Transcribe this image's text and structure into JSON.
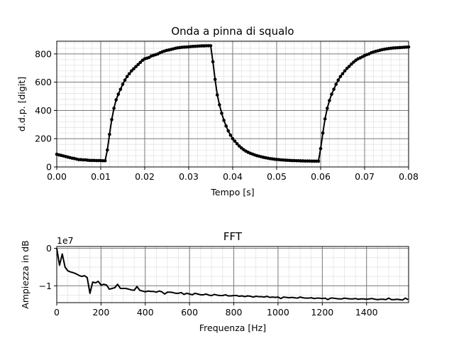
{
  "chart_data": [
    {
      "type": "line",
      "title": "Onda a pinna di squalo",
      "xlabel": "Tempo [s]",
      "ylabel": "d.d.p. [digit]",
      "xlim": [
        0,
        0.08
      ],
      "ylim": [
        0,
        890
      ],
      "xticks": [
        0.0,
        0.01,
        0.02,
        0.03,
        0.04,
        0.05,
        0.06,
        0.07,
        0.08
      ],
      "xtick_labels": [
        "0.00",
        "0.01",
        "0.02",
        "0.03",
        "0.04",
        "0.05",
        "0.06",
        "0.07",
        "0.08"
      ],
      "yticks": [
        0,
        200,
        400,
        600,
        800
      ],
      "ytick_labels": [
        "0",
        "200",
        "400",
        "600",
        "800"
      ],
      "grid": "major and minor",
      "markers": true,
      "line_color": "#000000",
      "series": [
        {
          "x": [
            0.0,
            0.0005,
            0.001,
            0.0015,
            0.002,
            0.0025,
            0.003,
            0.0035,
            0.004,
            0.0045,
            0.005,
            0.0055,
            0.006,
            0.0065,
            0.007,
            0.0075,
            0.008,
            0.0085,
            0.009,
            0.0095,
            0.01,
            0.0105,
            0.011,
            0.0115,
            0.012,
            0.0125,
            0.013,
            0.0135,
            0.014,
            0.0145,
            0.015,
            0.0155,
            0.016,
            0.0165,
            0.017,
            0.0175,
            0.018,
            0.0185,
            0.019,
            0.0195,
            0.02,
            0.0205,
            0.021,
            0.0215,
            0.022,
            0.0225,
            0.023,
            0.0235,
            0.024,
            0.0245,
            0.025,
            0.0255,
            0.026,
            0.0265,
            0.027,
            0.0275,
            0.028,
            0.0285,
            0.029,
            0.0295,
            0.03,
            0.0305,
            0.031,
            0.0315,
            0.032,
            0.0325,
            0.033,
            0.0335,
            0.034,
            0.0345,
            0.035,
            0.0355,
            0.036,
            0.0365,
            0.037,
            0.0375,
            0.038,
            0.0385,
            0.039,
            0.0395,
            0.04,
            0.0405,
            0.041,
            0.0415,
            0.042,
            0.0425,
            0.043,
            0.0435,
            0.044,
            0.0445,
            0.045,
            0.0455,
            0.046,
            0.0465,
            0.047,
            0.0475,
            0.048,
            0.0485,
            0.049,
            0.0495,
            0.05,
            0.0505,
            0.051,
            0.0515,
            0.052,
            0.0525,
            0.053,
            0.0535,
            0.054,
            0.0545,
            0.055,
            0.0555,
            0.056,
            0.0565,
            0.057,
            0.0575,
            0.058,
            0.0585,
            0.059,
            0.0595,
            0.06,
            0.0605,
            0.061,
            0.0615,
            0.062,
            0.0625,
            0.063,
            0.0635,
            0.064,
            0.0645,
            0.065,
            0.0655,
            0.066,
            0.0665,
            0.067,
            0.0675,
            0.068,
            0.0685,
            0.069,
            0.0695,
            0.07,
            0.0705,
            0.071,
            0.0715,
            0.072,
            0.0725,
            0.073,
            0.0735,
            0.074,
            0.0745,
            0.075,
            0.0755,
            0.076,
            0.0765,
            0.077,
            0.0775,
            0.078,
            0.0785,
            0.079,
            0.0795,
            0.08
          ],
          "y": [
            90,
            85,
            82,
            78,
            74,
            70,
            66,
            62,
            60,
            56,
            52,
            52,
            50,
            50,
            48,
            46,
            46,
            46,
            45,
            45,
            45,
            44,
            44,
            120,
            230,
            335,
            415,
            475,
            515,
            550,
            585,
            615,
            640,
            660,
            680,
            695,
            710,
            725,
            740,
            755,
            765,
            770,
            775,
            785,
            790,
            795,
            800,
            808,
            815,
            820,
            825,
            828,
            832,
            836,
            840,
            843,
            845,
            847,
            848,
            849,
            850,
            852,
            853,
            854,
            855,
            856,
            857,
            857,
            858,
            858,
            858,
            745,
            620,
            510,
            440,
            380,
            330,
            290,
            255,
            225,
            200,
            182,
            164,
            148,
            134,
            122,
            112,
            104,
            97,
            91,
            85,
            80,
            76,
            72,
            68,
            65,
            62,
            59,
            57,
            55,
            53,
            52,
            50,
            49,
            48,
            47,
            46,
            45,
            45,
            44,
            44,
            43,
            43,
            42,
            42,
            42,
            41,
            41,
            41,
            41,
            130,
            240,
            340,
            415,
            470,
            515,
            550,
            585,
            615,
            640,
            660,
            680,
            698,
            712,
            728,
            742,
            755,
            765,
            772,
            780,
            788,
            795,
            800,
            808,
            814,
            818,
            822,
            826,
            830,
            833,
            836,
            838,
            840,
            842,
            843,
            844,
            845,
            846,
            847,
            848,
            849
          ]
        }
      ]
    },
    {
      "type": "line",
      "title": "FFT",
      "xlabel": "Frequenza [Hz]",
      "ylabel": "Ampiezza in dB",
      "offset_text": "1e7",
      "xlim": [
        0,
        1590
      ],
      "ylim": [
        -1.45,
        0.05
      ],
      "xticks": [
        0,
        200,
        400,
        600,
        800,
        1000,
        1200,
        1400
      ],
      "xtick_labels": [
        "0",
        "200",
        "400",
        "600",
        "800",
        "1000",
        "1200",
        "1400"
      ],
      "yticks": [
        0,
        -1
      ],
      "ytick_labels": [
        "0",
        "−1"
      ],
      "grid": "major and minor",
      "markers": false,
      "line_color": "#000000",
      "series": [
        {
          "x": [
            0,
            12.5,
            25,
            37.5,
            50,
            62.5,
            75,
            87.5,
            100,
            112.5,
            125,
            137.5,
            150,
            162.5,
            175,
            187.5,
            200,
            212.5,
            225,
            237.5,
            250,
            262.5,
            275,
            287.5,
            300,
            312.5,
            325,
            337.5,
            350,
            362.5,
            375,
            387.5,
            400,
            412.5,
            425,
            437.5,
            450,
            462.5,
            475,
            487.5,
            500,
            512.5,
            525,
            537.5,
            550,
            562.5,
            575,
            587.5,
            600,
            612.5,
            625,
            637.5,
            650,
            662.5,
            675,
            687.5,
            700,
            712.5,
            725,
            737.5,
            750,
            762.5,
            775,
            787.5,
            800,
            812.5,
            825,
            837.5,
            850,
            862.5,
            875,
            887.5,
            900,
            912.5,
            925,
            937.5,
            950,
            962.5,
            975,
            987.5,
            1000,
            1012.5,
            1025,
            1037.5,
            1050,
            1062.5,
            1075,
            1087.5,
            1100,
            1112.5,
            1125,
            1137.5,
            1150,
            1162.5,
            1175,
            1187.5,
            1200,
            1212.5,
            1225,
            1237.5,
            1250,
            1262.5,
            1275,
            1287.5,
            1300,
            1312.5,
            1325,
            1337.5,
            1350,
            1362.5,
            1375,
            1387.5,
            1400,
            1412.5,
            1425,
            1437.5,
            1450,
            1462.5,
            1475,
            1487.5,
            1500,
            1512.5,
            1525,
            1537.5,
            1550,
            1562.5,
            1575,
            1587.5
          ],
          "y": [
            0.0,
            -0.45,
            -0.15,
            -0.5,
            -0.6,
            -0.63,
            -0.65,
            -0.68,
            -0.72,
            -0.75,
            -0.73,
            -0.78,
            -1.2,
            -0.9,
            -0.92,
            -0.88,
            -0.98,
            -0.96,
            -0.98,
            -1.09,
            -1.07,
            -1.05,
            -0.96,
            -1.07,
            -1.07,
            -1.07,
            -1.09,
            -1.11,
            -1.12,
            -1.02,
            -1.12,
            -1.14,
            -1.16,
            -1.14,
            -1.15,
            -1.15,
            -1.17,
            -1.14,
            -1.16,
            -1.22,
            -1.17,
            -1.17,
            -1.18,
            -1.2,
            -1.2,
            -1.18,
            -1.23,
            -1.2,
            -1.22,
            -1.24,
            -1.2,
            -1.22,
            -1.24,
            -1.24,
            -1.22,
            -1.25,
            -1.26,
            -1.23,
            -1.25,
            -1.26,
            -1.26,
            -1.24,
            -1.27,
            -1.27,
            -1.26,
            -1.26,
            -1.28,
            -1.27,
            -1.29,
            -1.27,
            -1.28,
            -1.3,
            -1.28,
            -1.29,
            -1.29,
            -1.3,
            -1.28,
            -1.31,
            -1.3,
            -1.31,
            -1.3,
            -1.34,
            -1.3,
            -1.31,
            -1.32,
            -1.31,
            -1.32,
            -1.33,
            -1.3,
            -1.32,
            -1.33,
            -1.33,
            -1.32,
            -1.34,
            -1.33,
            -1.33,
            -1.34,
            -1.33,
            -1.37,
            -1.33,
            -1.33,
            -1.34,
            -1.35,
            -1.35,
            -1.33,
            -1.34,
            -1.35,
            -1.35,
            -1.34,
            -1.36,
            -1.35,
            -1.35,
            -1.36,
            -1.35,
            -1.34,
            -1.36,
            -1.37,
            -1.36,
            -1.36,
            -1.37,
            -1.33,
            -1.37,
            -1.37,
            -1.36,
            -1.37,
            -1.38,
            -1.33,
            -1.37
          ]
        }
      ]
    }
  ]
}
